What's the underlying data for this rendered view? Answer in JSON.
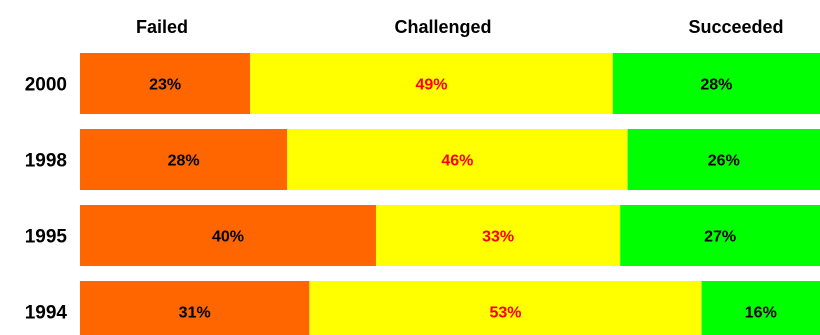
{
  "chart_data": {
    "type": "bar",
    "orientation": "horizontal",
    "stacked": true,
    "categories": [
      "2000",
      "1998",
      "1995",
      "1994"
    ],
    "series": [
      {
        "name": "Failed",
        "values": [
          23,
          28,
          40,
          31
        ],
        "color": "#ff6600",
        "label_color": "#000000"
      },
      {
        "name": "Challenged",
        "values": [
          49,
          46,
          33,
          53
        ],
        "color": "#ffff00",
        "label_color": "#ff0000"
      },
      {
        "name": "Succeeded",
        "values": [
          28,
          26,
          27,
          16
        ],
        "color": "#00ff00",
        "label_color": "#000000"
      }
    ],
    "value_suffix": "%",
    "xlim": [
      0,
      100
    ],
    "grid": false,
    "legend": "top"
  }
}
